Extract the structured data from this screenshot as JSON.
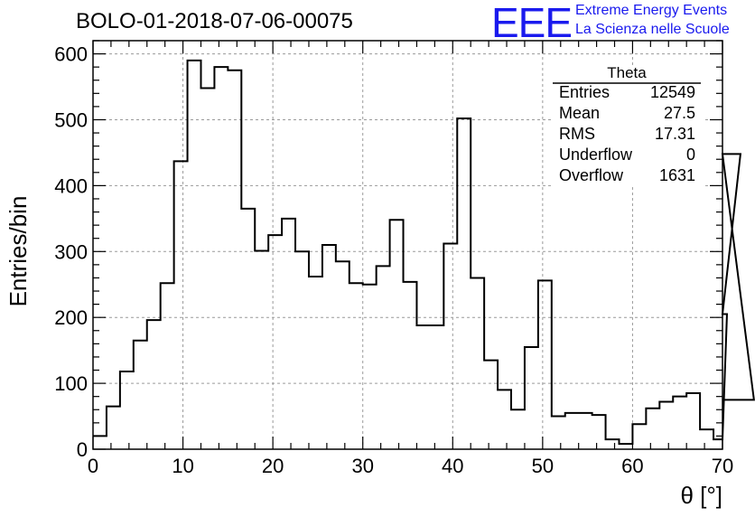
{
  "chart_data": {
    "type": "histogram",
    "title": "BOLO-01-2018-07-06-00075",
    "xlabel": "θ [°]",
    "ylabel": "Entries/bin",
    "xlim": [
      0,
      70
    ],
    "ylim": [
      0,
      620
    ],
    "xticks": [
      0,
      10,
      20,
      30,
      40,
      50,
      60,
      70
    ],
    "yticks": [
      0,
      100,
      200,
      300,
      400,
      500,
      600
    ],
    "grid": true,
    "bin_width": 1.5,
    "bin_edges_start": 0,
    "values": [
      20,
      65,
      118,
      165,
      196,
      252,
      437,
      590,
      548,
      580,
      575,
      365,
      301,
      325,
      350,
      300,
      262,
      310,
      285,
      252,
      250,
      278,
      348,
      254,
      188,
      188,
      312,
      502,
      260,
      135,
      90,
      60,
      155,
      256,
      50,
      55,
      55,
      52,
      15,
      8,
      38,
      62,
      72,
      80,
      85,
      30,
      15,
      205,
      448,
      75
    ],
    "stats_box": {
      "name": "Theta",
      "rows": [
        {
          "label": "Entries",
          "value": "12549"
        },
        {
          "label": "Mean",
          "value": "27.5"
        },
        {
          "label": "RMS",
          "value": "17.31"
        },
        {
          "label": "Underflow",
          "value": "0"
        },
        {
          "label": "Overflow",
          "value": "1631"
        }
      ]
    }
  },
  "logo": {
    "mark": "EEE",
    "line1": "Extreme Energy Events",
    "line2": "La Scienza nelle Scuole"
  },
  "colors": {
    "logo": "#1a1aee",
    "line": "#000000",
    "grid": "#9a9a9a"
  }
}
